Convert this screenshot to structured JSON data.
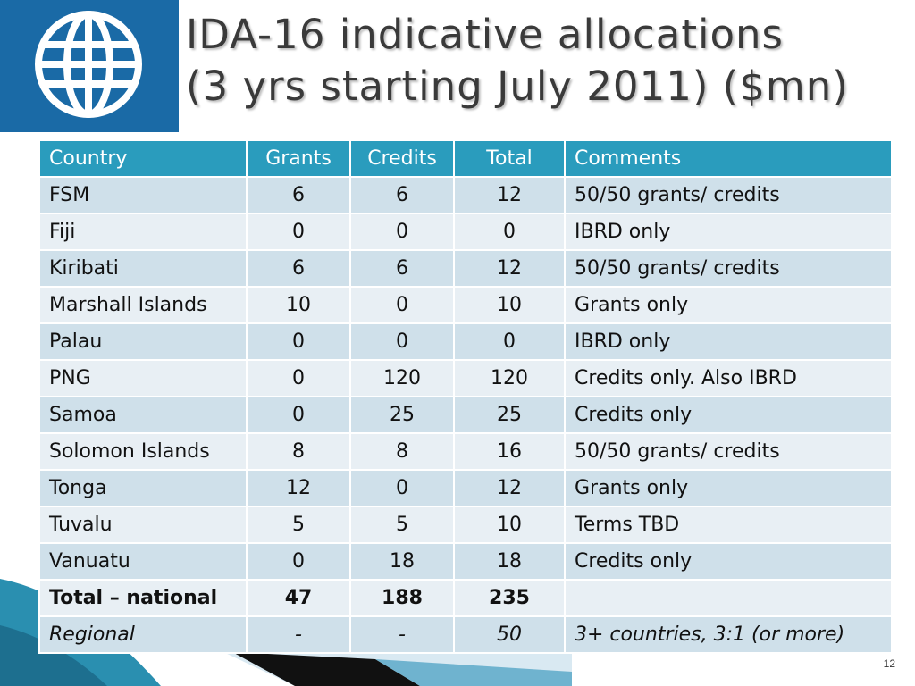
{
  "title": {
    "line1": "IDA-16 indicative allocations",
    "line2": "(3 yrs starting July 2011) ($mn)"
  },
  "logo": {
    "icon": "globe-icon"
  },
  "table": {
    "headers": [
      "Country",
      "Grants",
      "Credits",
      "Total",
      "Comments"
    ],
    "rows": [
      [
        "FSM",
        "6",
        "6",
        "12",
        "50/50 grants/ credits"
      ],
      [
        "Fiji",
        "0",
        "0",
        "0",
        "IBRD only"
      ],
      [
        "Kiribati",
        "6",
        "6",
        "12",
        "50/50 grants/ credits"
      ],
      [
        "Marshall Islands",
        "10",
        "0",
        "10",
        "Grants only"
      ],
      [
        "Palau",
        "0",
        "0",
        "0",
        "IBRD only"
      ],
      [
        "PNG",
        "0",
        "120",
        "120",
        "Credits only. Also IBRD"
      ],
      [
        "Samoa",
        "0",
        "25",
        "25",
        "Credits only"
      ],
      [
        "Solomon Islands",
        "8",
        "8",
        "16",
        "50/50 grants/ credits"
      ],
      [
        "Tonga",
        "12",
        "0",
        "12",
        "Grants only"
      ],
      [
        "Tuvalu",
        "5",
        "5",
        "10",
        "Terms TBD"
      ],
      [
        "Vanuatu",
        "0",
        "18",
        "18",
        "Credits only"
      ]
    ],
    "total": [
      "Total – national",
      "47",
      "188",
      "235",
      ""
    ],
    "regional": [
      "Regional",
      "-",
      "-",
      "50",
      "3+ countries, 3:1 (or more)"
    ]
  },
  "page_number": "12",
  "colors": {
    "header_bg": "#2a9cbd",
    "row_odd": "#cfe0ea",
    "row_even": "#e8eff4",
    "logo_bg": "#1a6aa6"
  }
}
